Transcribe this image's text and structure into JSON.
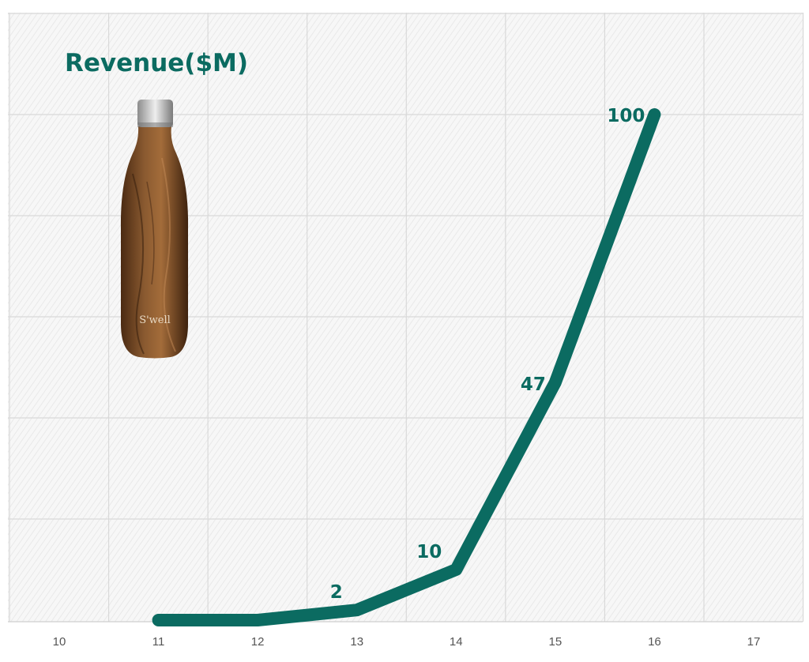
{
  "colors": {
    "accent": "#0b6b61",
    "grid": "#d9d9d9",
    "tick_text": "#555555"
  },
  "product_image": {
    "icon": "insulated-bottle-icon",
    "brand_text": "S'well"
  },
  "chart_data": {
    "type": "line",
    "title": "Revenue($M)",
    "xlabel": "",
    "ylabel": "",
    "x_ticks": [
      "10",
      "11",
      "12",
      "13",
      "14",
      "15",
      "16",
      "17"
    ],
    "xlim": [
      10,
      17
    ],
    "ylim": [
      0,
      100
    ],
    "grid": true,
    "legend": "none",
    "series": [
      {
        "x": [
          11,
          12,
          13,
          14,
          15,
          16
        ],
        "values": [
          0,
          0,
          2,
          10,
          47,
          100
        ]
      }
    ],
    "data_labels": [
      {
        "x": 13,
        "y": 2,
        "text": "2"
      },
      {
        "x": 14,
        "y": 10,
        "text": "10"
      },
      {
        "x": 15,
        "y": 47,
        "text": "47"
      },
      {
        "x": 16,
        "y": 100,
        "text": "100"
      }
    ]
  }
}
